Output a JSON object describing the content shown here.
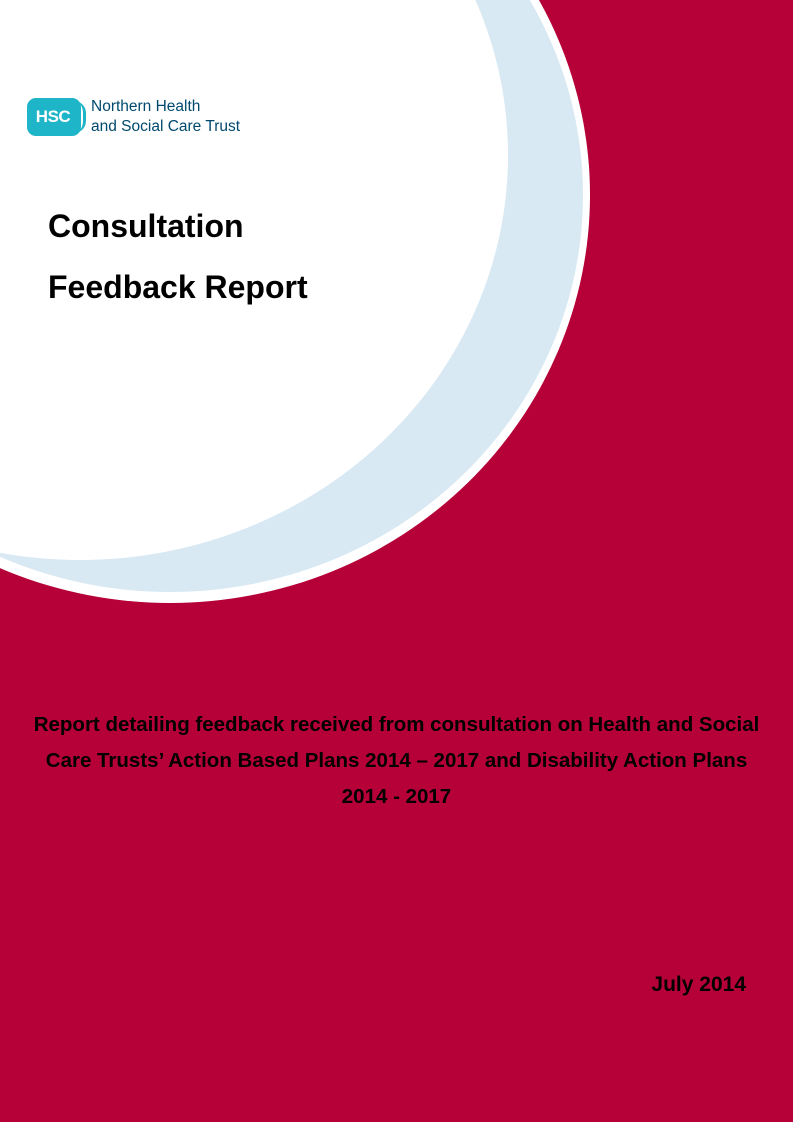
{
  "logo": {
    "badge": "HSC",
    "line1": "Northern Health",
    "line2": "and Social Care Trust"
  },
  "title": {
    "line1": "Consultation",
    "line2": "Feedback Report"
  },
  "subtitle": "Report detailing feedback received from consultation on Health and Social Care Trusts’ Action Based Plans 2014 – 2017 and Disability Action Plans 2014 - 2017",
  "date": "July 2014",
  "colors": {
    "background": "#b60038",
    "light_blue_arc": "#d8e9f4",
    "white_disc": "#ffffff",
    "logo_teal": "#1fb5c8",
    "logo_text": "#00496e"
  }
}
